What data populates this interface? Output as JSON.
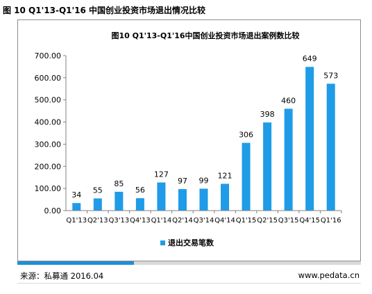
{
  "figure_title": "图 10 Q1'13-Q1'16 中国创业投资市场退出情况比较",
  "source": "来源：私募通 2016.04",
  "website": "www.pedata.cn",
  "colors": {
    "bar": "#1f9be8",
    "accent": "#1f8fd6"
  },
  "chart_data": {
    "type": "bar",
    "title": "图10  Q1'13-Q1'16中国创业投资市场退出案例数比较",
    "categories": [
      "Q1'13",
      "Q2'13",
      "Q3'13",
      "Q4'13",
      "Q1'14",
      "Q2'14",
      "Q3'14",
      "Q4'14",
      "Q1'15",
      "Q2'15",
      "Q3'15",
      "Q4'15",
      "Q1'16"
    ],
    "series": [
      {
        "name": "退出交易笔数",
        "values": [
          34,
          55,
          85,
          56,
          127,
          97,
          99,
          121,
          306,
          398,
          460,
          649,
          573
        ]
      }
    ],
    "data_labels": [
      "34",
      "55",
      "85",
      "56",
      "127",
      "97",
      "99",
      "121",
      "306",
      "398",
      "460",
      "649",
      "573"
    ],
    "y_ticks": [
      "0.00",
      "100.00",
      "200.00",
      "300.00",
      "400.00",
      "500.00",
      "600.00",
      "700.00"
    ],
    "ylim": [
      0,
      700
    ],
    "xlabel": "",
    "ylabel": "",
    "grid": false,
    "legend": "bottom"
  }
}
